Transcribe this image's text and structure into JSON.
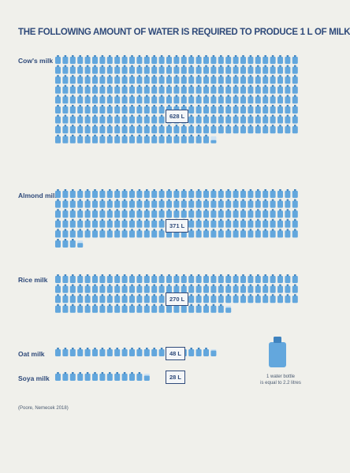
{
  "title": "THE FOLLOWING AMOUNT OF WATER IS REQUIRED TO PRODUCE 1 L OF MILK",
  "chart_data": {
    "type": "pictogram",
    "unit_label": "1 water bottle is equal to 2.2 litres",
    "unit_litres": 2.2,
    "series": [
      {
        "name": "Cow's milk",
        "label": "628 L",
        "value": 628
      },
      {
        "name": "Almond milk",
        "label": "371 L",
        "value": 371
      },
      {
        "name": "Rice milk",
        "label": "270 L",
        "value": 270
      },
      {
        "name": "Oat milk",
        "label": "48 L",
        "value": 48
      },
      {
        "name": "Soya milk",
        "label": "28 L",
        "value": 28
      }
    ]
  },
  "legend": {
    "line1": "1 water bottle",
    "line2": "is equal to 2.2 litres"
  },
  "source": "(Poore, Nemecek 2018)",
  "colors": {
    "bottle": "#63a7dd",
    "bottle_cap": "#3f83bf",
    "text": "#2f4a7a",
    "background": "#f0f0eb"
  }
}
